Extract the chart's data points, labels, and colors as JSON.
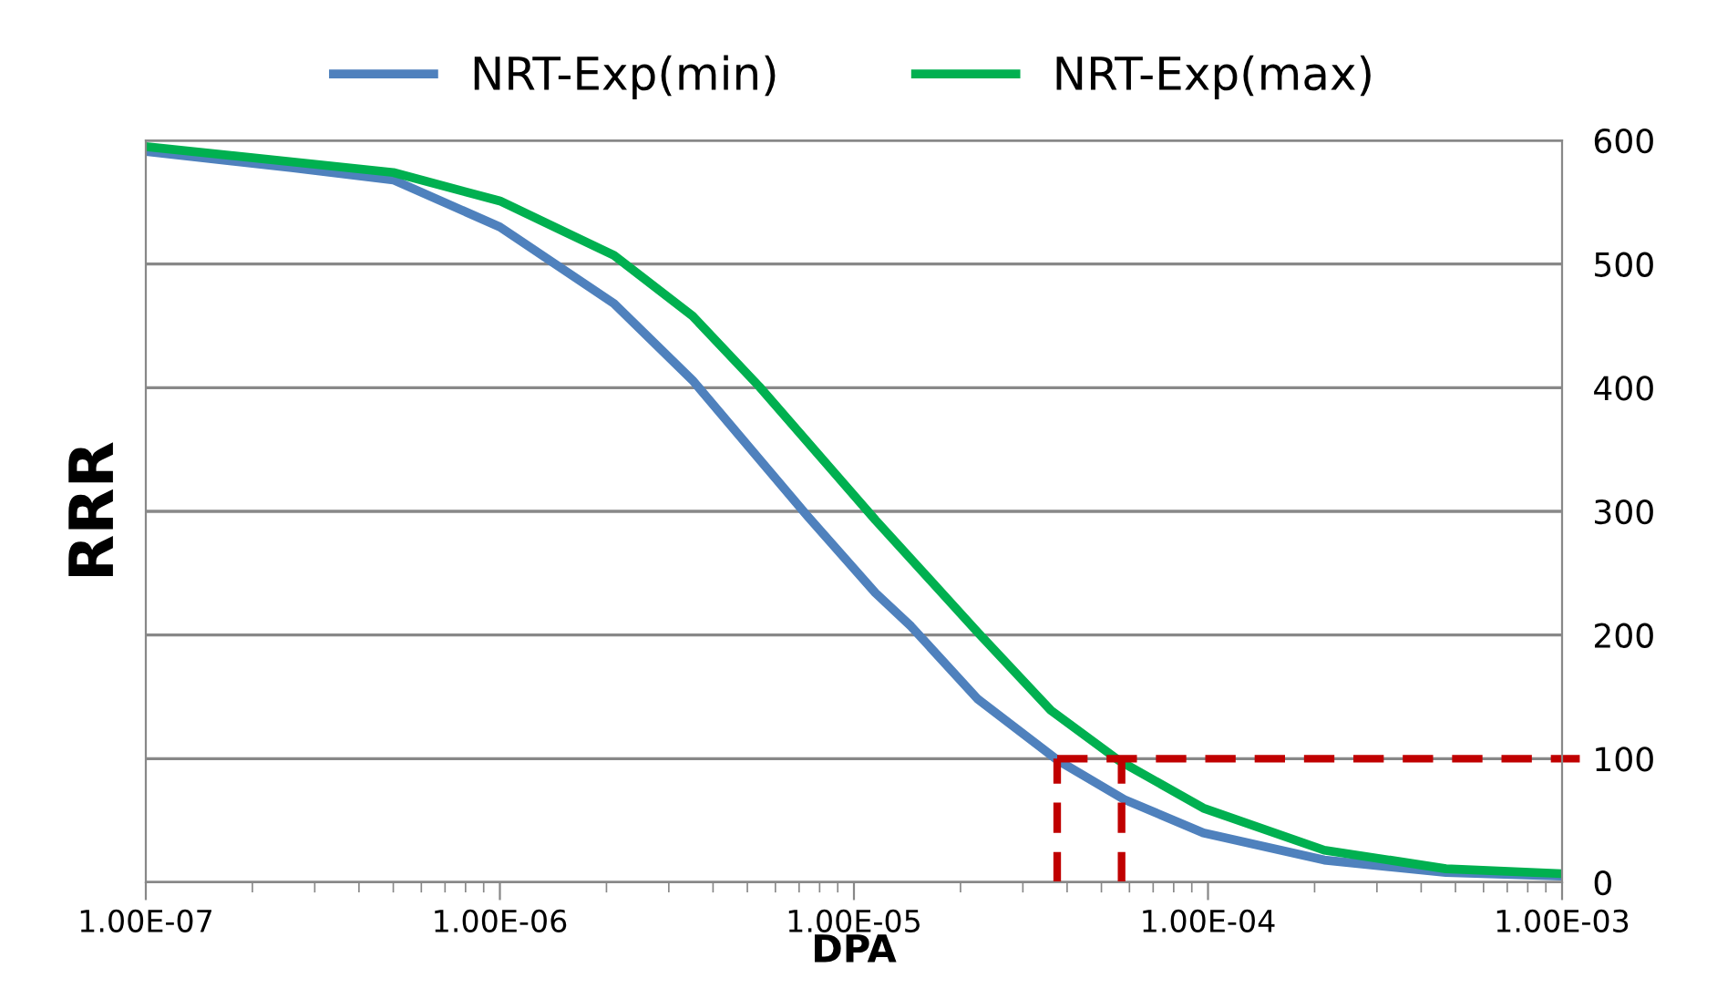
{
  "chart_data": {
    "type": "line",
    "xlabel": "DPA",
    "ylabel": "RRR",
    "log": "x",
    "grid": "y",
    "legend": "top",
    "marker": "none",
    "line_style": "solid",
    "xlim": [
      1e-07,
      0.001
    ],
    "xticks": [
      {
        "value": 1e-07,
        "label": "1.00E-07"
      },
      {
        "value": 1e-06,
        "label": "1.00E-06"
      },
      {
        "value": 1e-05,
        "label": "1.00E-05"
      },
      {
        "value": 0.0001,
        "label": "1.00E-04"
      },
      {
        "value": 0.001,
        "label": "1.00E-03"
      }
    ],
    "ylim": [
      0,
      600
    ],
    "yticks": [
      0,
      100,
      200,
      300,
      400,
      500,
      600
    ],
    "series": [
      {
        "name": "NRT-Exp(min)",
        "color": "#4f81bd",
        "x": [
          1e-07,
          2.58e-07,
          5e-07,
          1e-06,
          2.1e-06,
          3.5e-06,
          7.4e-06,
          1.15e-05,
          1.45e-05,
          2.24e-05,
          3.75e-05,
          5.8e-05,
          9.7e-05,
          0.000213,
          0.00047,
          0.001
        ],
        "values": [
          591,
          578,
          568,
          530,
          468,
          406,
          296,
          234,
          207,
          148,
          99,
          67,
          40,
          18,
          8,
          5
        ]
      },
      {
        "name": "NRT-Exp(max)",
        "color": "#00b050",
        "x": [
          1e-07,
          5e-07,
          1e-06,
          2.1e-06,
          3.5e-06,
          5.4e-06,
          1.15e-05,
          2.24e-05,
          3.6e-05,
          5.57e-05,
          9.7e-05,
          0.000213,
          0.00047,
          0.001
        ],
        "values": [
          595,
          574,
          551,
          507,
          458,
          401,
          293,
          202,
          139,
          99,
          60,
          26,
          11,
          7
        ]
      }
    ],
    "ref_lines": [
      {
        "axis": "x",
        "value": 3.75e-05,
        "color": "#c00000",
        "line_style": "dashed"
      },
      {
        "axis": "x",
        "value": 5.7e-05,
        "color": "#c00000",
        "line_style": "dashed"
      },
      {
        "axis": "y",
        "value": 100,
        "color": "#c00000",
        "line_style": "dashed"
      }
    ]
  }
}
